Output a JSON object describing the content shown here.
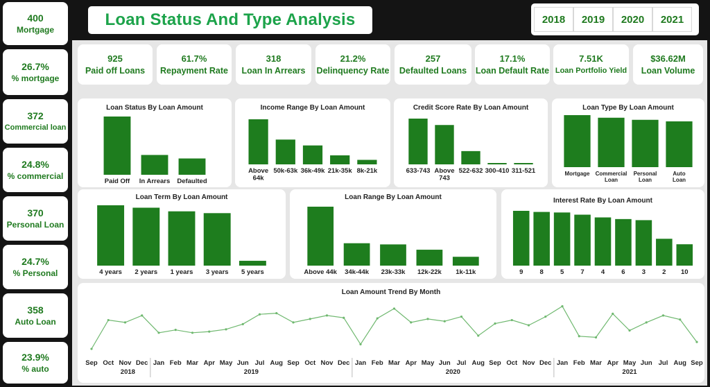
{
  "title": "Loan Status And Type Analysis",
  "years": [
    "2018",
    "2019",
    "2020",
    "2021"
  ],
  "left_kpis": [
    {
      "value": "400",
      "label": "Mortgage"
    },
    {
      "value": "26.7%",
      "label": "% mortgage"
    },
    {
      "value": "372",
      "label": "Commercial loan"
    },
    {
      "value": "24.8%",
      "label": "% commercial"
    },
    {
      "value": "370",
      "label": "Personal Loan"
    },
    {
      "value": "24.7%",
      "label": "% Personal"
    },
    {
      "value": "358",
      "label": "Auto Loan"
    },
    {
      "value": "23.9%",
      "label": "% auto"
    }
  ],
  "top_kpis": [
    {
      "value": "925",
      "label": "Paid off Loans"
    },
    {
      "value": "61.7%",
      "label": "Repayment Rate"
    },
    {
      "value": "318",
      "label": "Loan In Arrears"
    },
    {
      "value": "21.2%",
      "label": "Delinquency Rate"
    },
    {
      "value": "257",
      "label": "Defaulted Loans"
    },
    {
      "value": "17.1%",
      "label": "Loan Default Rate"
    },
    {
      "value": "7.51K",
      "label": "Loan Portfolio Yield"
    },
    {
      "value": "$36.62M",
      "label": "Loan Volume"
    }
  ],
  "colors": {
    "bar": "#1e7d1e",
    "accent": "#1ca34a",
    "text_green": "#1f7a1f"
  },
  "chart_data": [
    {
      "id": "status",
      "type": "bar",
      "title": "Loan Status By Loan Amount",
      "categories": [
        "Paid Off",
        "In Arrears",
        "Defaulted"
      ],
      "values": [
        100,
        34,
        28
      ]
    },
    {
      "id": "income",
      "type": "bar",
      "title": "Income Range By Loan Amount",
      "categories": [
        "Above 64k",
        "50k-63k",
        "36k-49k",
        "21k-35k",
        "8k-21k"
      ],
      "values": [
        100,
        55,
        42,
        20,
        10
      ]
    },
    {
      "id": "credit",
      "type": "bar",
      "title": "Credit Score Rate By Loan Amount",
      "categories": [
        "633-743",
        "Above 743",
        "522-632",
        "300-410",
        "311-521"
      ],
      "values": [
        100,
        86,
        29,
        3,
        3
      ]
    },
    {
      "id": "type",
      "type": "bar",
      "title": "Loan Type By Loan Amount",
      "categories": [
        "Mortgage",
        "Commercial Loan",
        "Personal Loan",
        "Auto Loan"
      ],
      "values": [
        100,
        95,
        91,
        88
      ]
    },
    {
      "id": "term",
      "type": "bar",
      "title": "Loan Term By Loan Amount",
      "categories": [
        "4 years",
        "2 years",
        "1 years",
        "3 years",
        "5 years"
      ],
      "values": [
        100,
        96,
        90,
        87,
        8
      ]
    },
    {
      "id": "range",
      "type": "bar",
      "title": "Loan Range By Loan Amount",
      "categories": [
        "Above 44k",
        "34k-44k",
        "23k-33k",
        "12k-22k",
        "1k-11k"
      ],
      "values": [
        100,
        38,
        36,
        27,
        15
      ]
    },
    {
      "id": "interest",
      "type": "bar",
      "title": "Interest Rate By Loan Amount",
      "categories": [
        "9",
        "8",
        "5",
        "7",
        "4",
        "6",
        "3",
        "2",
        "10"
      ],
      "values": [
        100,
        98,
        97,
        93,
        88,
        85,
        83,
        49,
        39
      ]
    },
    {
      "id": "trend",
      "type": "line",
      "title": "Loan Amount Trend By Month",
      "x": [
        "Sep",
        "Oct",
        "Nov",
        "Dec",
        "Jan",
        "Feb",
        "Mar",
        "Apr",
        "May",
        "Jun",
        "Jul",
        "Aug",
        "Sep",
        "Oct",
        "Nov",
        "Dec",
        "Jan",
        "Feb",
        "Mar",
        "Apr",
        "May",
        "Jun",
        "Jul",
        "Aug",
        "Sep",
        "Oct",
        "Nov",
        "Dec",
        "Jan",
        "Feb",
        "Mar",
        "Apr",
        "May",
        "Jun",
        "Jul",
        "Aug",
        "Sep"
      ],
      "year_labels": [
        "2018",
        "2019",
        "2020",
        "2021"
      ],
      "values": [
        12,
        62,
        58,
        70,
        40,
        45,
        40,
        42,
        46,
        55,
        72,
        74,
        58,
        64,
        70,
        66,
        20,
        65,
        82,
        58,
        64,
        60,
        68,
        35,
        56,
        62,
        53,
        68,
        86,
        34,
        32,
        73,
        44,
        58,
        70,
        63,
        24
      ]
    }
  ]
}
